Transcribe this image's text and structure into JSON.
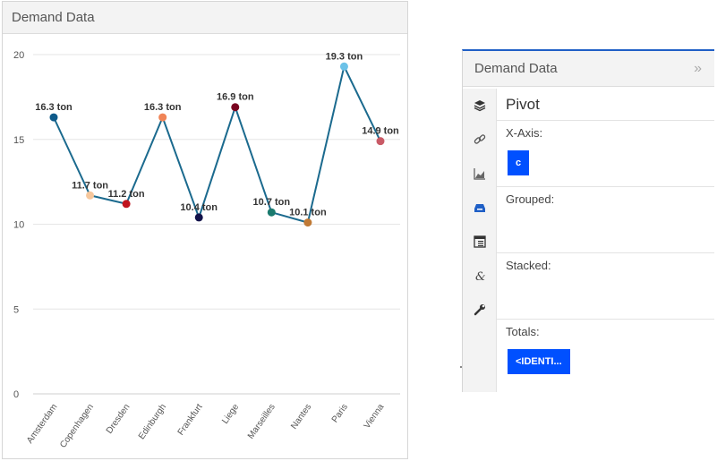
{
  "chart_panel": {
    "title": "Demand Data"
  },
  "chart_data": {
    "type": "line",
    "title": "",
    "xlabel": "",
    "ylabel": "",
    "categories": [
      "Amsterdam",
      "Copenhagen",
      "Dresden",
      "Edinburgh",
      "Frankfurt",
      "Liege",
      "Marseilles",
      "Nantes",
      "Paris",
      "Vienna"
    ],
    "values": [
      16.3,
      11.7,
      11.2,
      16.3,
      10.4,
      16.9,
      10.7,
      10.1,
      19.3,
      14.9
    ],
    "data_labels": [
      "16.3 ton",
      "11.7 ton",
      "11.2 ton",
      "16.3 ton",
      "10.4 ton",
      "16.9 ton",
      "10.7 ton",
      "10.1 ton",
      "19.3 ton",
      "14.9 ton"
    ],
    "point_colors": [
      "#0e5a8a",
      "#f6c79d",
      "#c0141e",
      "#f08457",
      "#12124a",
      "#7a0420",
      "#1a7a6e",
      "#c07a36",
      "#6cc2e8",
      "#c95a66"
    ],
    "line_color": "#1b6a8e",
    "ylim": [
      0,
      20
    ],
    "yticks": [
      0,
      5,
      10,
      15,
      20
    ],
    "grid": true,
    "legend": "none"
  },
  "pivot_panel": {
    "title": "Demand Data",
    "collapse_icon": "»",
    "heading": "Pivot",
    "sections": {
      "x_axis": {
        "label": "X-Axis:",
        "chip": "c"
      },
      "grouped": {
        "label": "Grouped:"
      },
      "stacked": {
        "label": "Stacked:"
      },
      "totals": {
        "label": "Totals:",
        "chip": "<IDENTI..."
      }
    },
    "rail_icons": [
      "layers-icon",
      "link-icon",
      "area-chart-icon",
      "tray-icon",
      "report-icon",
      "ampersand-icon",
      "wrench-icon"
    ]
  }
}
